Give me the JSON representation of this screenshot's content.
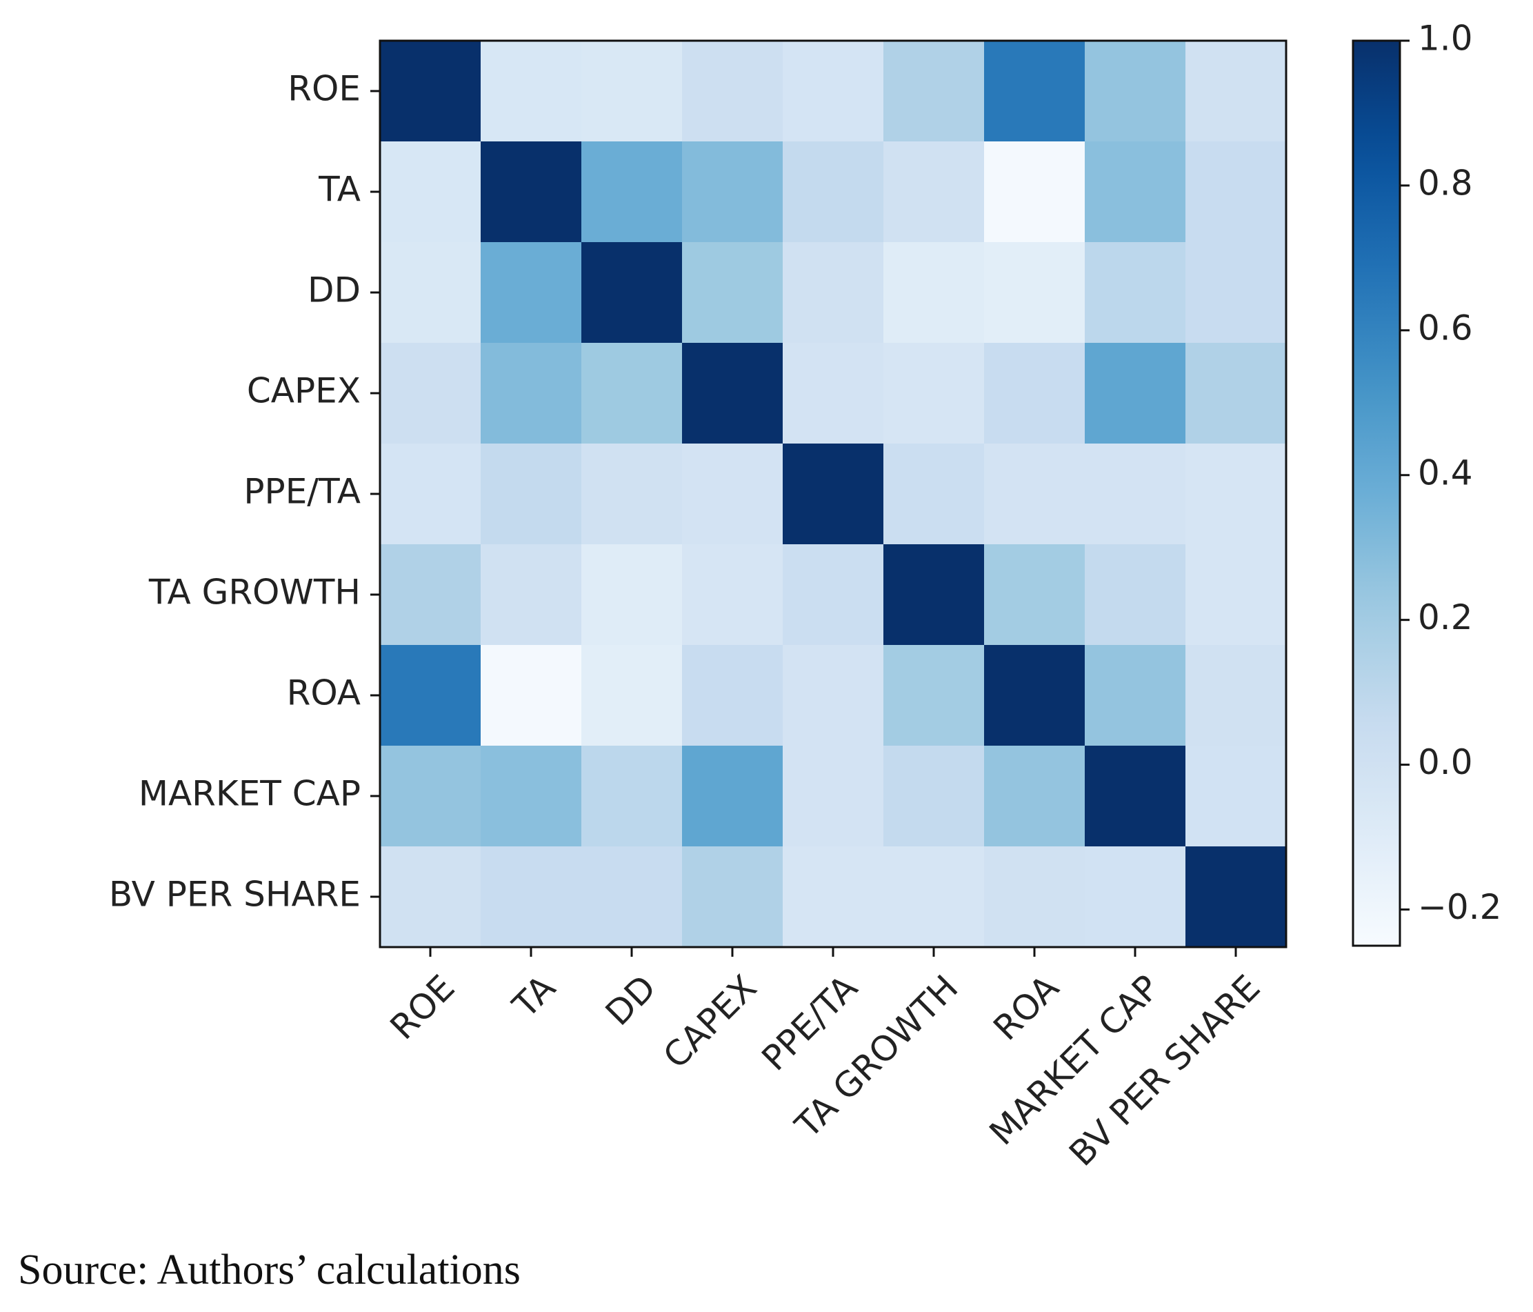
{
  "chart_data": {
    "type": "heatmap",
    "title": "",
    "xlabel": "",
    "ylabel": "",
    "variables": [
      "ROE",
      "TA",
      "DD",
      "CAPEX",
      "PPE/TA",
      "TA GROWTH",
      "ROA",
      "MARKET CAP",
      "BV PER SHARE"
    ],
    "matrix": [
      [
        1.0,
        -0.05,
        -0.06,
        0.02,
        -0.03,
        0.15,
        0.65,
        0.25,
        0.0
      ],
      [
        -0.05,
        1.0,
        0.38,
        0.3,
        0.07,
        0.0,
        -0.23,
        0.28,
        0.05
      ],
      [
        -0.06,
        0.38,
        1.0,
        0.22,
        0.0,
        -0.1,
        -0.12,
        0.1,
        0.05
      ],
      [
        0.02,
        0.3,
        0.22,
        1.0,
        -0.02,
        -0.04,
        0.05,
        0.42,
        0.15
      ],
      [
        -0.03,
        0.07,
        0.0,
        -0.02,
        1.0,
        0.03,
        -0.02,
        -0.02,
        -0.04
      ],
      [
        0.15,
        0.0,
        -0.1,
        -0.04,
        0.03,
        1.0,
        0.2,
        0.07,
        -0.04
      ],
      [
        0.65,
        -0.23,
        -0.12,
        0.05,
        -0.02,
        0.2,
        1.0,
        0.25,
        0.0
      ],
      [
        0.25,
        0.28,
        0.1,
        0.42,
        -0.02,
        0.07,
        0.25,
        1.0,
        -0.01
      ],
      [
        0.0,
        0.05,
        0.05,
        0.15,
        -0.04,
        -0.04,
        0.0,
        -0.01,
        1.0
      ]
    ],
    "colorbar": {
      "min": -0.25,
      "max": 1.0,
      "ticks": [
        1.0,
        0.8,
        0.6,
        0.4,
        0.2,
        0.0,
        -0.2
      ],
      "tick_labels": [
        "1.0",
        "0.8",
        "0.6",
        "0.4",
        "0.2",
        "0.0",
        "−0.2"
      ],
      "colormap": "Blues"
    }
  },
  "caption": "Source: Authors’ calculations"
}
